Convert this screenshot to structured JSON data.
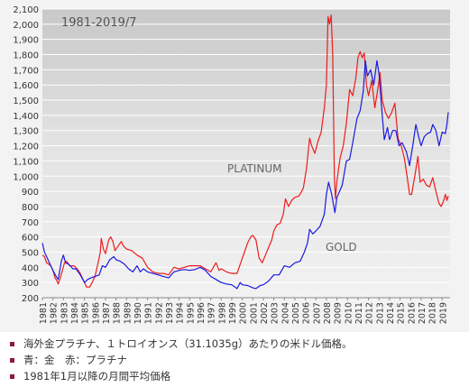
{
  "chart_data": {
    "type": "line",
    "period_label": "1981-2019/7",
    "ylim": [
      200,
      2100
    ],
    "y_ticks": [
      "200",
      "300",
      "400",
      "500",
      "600",
      "700",
      "800",
      "900",
      "1,000",
      "1,100",
      "1,200",
      "1,300",
      "1,400",
      "1,500",
      "1,600",
      "1,700",
      "1,800",
      "1,900",
      "2,000",
      "2,100"
    ],
    "x_ticks": [
      "1981",
      "1982",
      "1983",
      "1984",
      "1985",
      "1986",
      "1987",
      "1988",
      "1989",
      "1990",
      "1991",
      "1992",
      "1993",
      "1994",
      "1995",
      "1996",
      "1997",
      "1998",
      "1999",
      "2000",
      "2001",
      "2002",
      "2003",
      "2004",
      "2005",
      "2006",
      "2007",
      "2008",
      "2009",
      "2010",
      "2011",
      "2012",
      "2013",
      "2014",
      "2015",
      "2016",
      "2017",
      "2018",
      "2019"
    ],
    "series": [
      {
        "name": "PLATINUM",
        "color": "#ee1c1c",
        "points": [
          [
            1981.0,
            480
          ],
          [
            1981.2,
            470
          ],
          [
            1981.4,
            430
          ],
          [
            1981.6,
            420
          ],
          [
            1981.8,
            410
          ],
          [
            1982.0,
            380
          ],
          [
            1982.2,
            330
          ],
          [
            1982.4,
            310
          ],
          [
            1982.5,
            290
          ],
          [
            1982.7,
            330
          ],
          [
            1982.9,
            380
          ],
          [
            1983.1,
            430
          ],
          [
            1983.3,
            440
          ],
          [
            1983.6,
            410
          ],
          [
            1984.0,
            410
          ],
          [
            1984.3,
            390
          ],
          [
            1984.6,
            360
          ],
          [
            1985.0,
            300
          ],
          [
            1985.2,
            270
          ],
          [
            1985.5,
            270
          ],
          [
            1985.8,
            310
          ],
          [
            1986.0,
            340
          ],
          [
            1986.3,
            430
          ],
          [
            1986.5,
            500
          ],
          [
            1986.6,
            590
          ],
          [
            1986.8,
            520
          ],
          [
            1987.0,
            490
          ],
          [
            1987.3,
            580
          ],
          [
            1987.5,
            600
          ],
          [
            1987.7,
            570
          ],
          [
            1987.9,
            510
          ],
          [
            1988.2,
            540
          ],
          [
            1988.5,
            570
          ],
          [
            1988.7,
            540
          ],
          [
            1989.0,
            520
          ],
          [
            1989.5,
            510
          ],
          [
            1990.0,
            480
          ],
          [
            1990.5,
            460
          ],
          [
            1991.0,
            400
          ],
          [
            1991.5,
            370
          ],
          [
            1992.0,
            360
          ],
          [
            1992.5,
            360
          ],
          [
            1993.0,
            350
          ],
          [
            1993.5,
            400
          ],
          [
            1994.0,
            390
          ],
          [
            1994.5,
            400
          ],
          [
            1995.0,
            410
          ],
          [
            1995.5,
            410
          ],
          [
            1996.0,
            410
          ],
          [
            1996.5,
            390
          ],
          [
            1997.0,
            370
          ],
          [
            1997.5,
            430
          ],
          [
            1997.8,
            380
          ],
          [
            1998.0,
            390
          ],
          [
            1998.5,
            370
          ],
          [
            1999.0,
            360
          ],
          [
            1999.5,
            360
          ],
          [
            1999.9,
            440
          ],
          [
            2000.2,
            500
          ],
          [
            2000.5,
            560
          ],
          [
            2000.8,
            600
          ],
          [
            2001.0,
            610
          ],
          [
            2001.3,
            580
          ],
          [
            2001.6,
            460
          ],
          [
            2001.9,
            430
          ],
          [
            2002.2,
            480
          ],
          [
            2002.5,
            530
          ],
          [
            2002.8,
            580
          ],
          [
            2003.0,
            640
          ],
          [
            2003.3,
            680
          ],
          [
            2003.6,
            690
          ],
          [
            2003.9,
            750
          ],
          [
            2004.1,
            850
          ],
          [
            2004.4,
            800
          ],
          [
            2004.7,
            840
          ],
          [
            2005.0,
            860
          ],
          [
            2005.4,
            870
          ],
          [
            2005.8,
            920
          ],
          [
            2006.1,
            1050
          ],
          [
            2006.4,
            1250
          ],
          [
            2006.6,
            1200
          ],
          [
            2006.9,
            1150
          ],
          [
            2007.2,
            1230
          ],
          [
            2007.5,
            1290
          ],
          [
            2007.8,
            1450
          ],
          [
            2008.0,
            1600
          ],
          [
            2008.15,
            2050
          ],
          [
            2008.3,
            2000
          ],
          [
            2008.45,
            2060
          ],
          [
            2008.6,
            1800
          ],
          [
            2008.75,
            1000
          ],
          [
            2008.85,
            850
          ],
          [
            2009.0,
            970
          ],
          [
            2009.3,
            1120
          ],
          [
            2009.6,
            1200
          ],
          [
            2009.9,
            1350
          ],
          [
            2010.2,
            1570
          ],
          [
            2010.5,
            1530
          ],
          [
            2010.8,
            1650
          ],
          [
            2011.0,
            1780
          ],
          [
            2011.2,
            1820
          ],
          [
            2011.4,
            1780
          ],
          [
            2011.6,
            1810
          ],
          [
            2011.8,
            1600
          ],
          [
            2012.0,
            1530
          ],
          [
            2012.3,
            1630
          ],
          [
            2012.6,
            1450
          ],
          [
            2012.9,
            1580
          ],
          [
            2013.1,
            1680
          ],
          [
            2013.3,
            1500
          ],
          [
            2013.6,
            1420
          ],
          [
            2013.9,
            1380
          ],
          [
            2014.2,
            1420
          ],
          [
            2014.5,
            1480
          ],
          [
            2014.8,
            1250
          ],
          [
            2015.1,
            1200
          ],
          [
            2015.4,
            1120
          ],
          [
            2015.7,
            980
          ],
          [
            2015.9,
            880
          ],
          [
            2016.1,
            880
          ],
          [
            2016.4,
            1000
          ],
          [
            2016.7,
            1130
          ],
          [
            2016.9,
            960
          ],
          [
            2017.2,
            980
          ],
          [
            2017.5,
            940
          ],
          [
            2017.8,
            930
          ],
          [
            2018.1,
            990
          ],
          [
            2018.4,
            900
          ],
          [
            2018.7,
            820
          ],
          [
            2018.9,
            800
          ],
          [
            2019.1,
            830
          ],
          [
            2019.3,
            880
          ],
          [
            2019.45,
            840
          ],
          [
            2019.58,
            870
          ]
        ]
      },
      {
        "name": "GOLD",
        "color": "#1a1ae0",
        "points": [
          [
            1981.0,
            560
          ],
          [
            1981.2,
            500
          ],
          [
            1981.4,
            470
          ],
          [
            1981.6,
            440
          ],
          [
            1981.8,
            410
          ],
          [
            1982.0,
            380
          ],
          [
            1982.3,
            340
          ],
          [
            1982.5,
            320
          ],
          [
            1982.8,
            440
          ],
          [
            1983.0,
            480
          ],
          [
            1983.2,
            430
          ],
          [
            1983.5,
            420
          ],
          [
            1983.9,
            390
          ],
          [
            1984.2,
            390
          ],
          [
            1984.6,
            350
          ],
          [
            1985.0,
            300
          ],
          [
            1985.3,
            320
          ],
          [
            1985.6,
            330
          ],
          [
            1986.0,
            340
          ],
          [
            1986.4,
            350
          ],
          [
            1986.7,
            410
          ],
          [
            1987.0,
            400
          ],
          [
            1987.4,
            450
          ],
          [
            1987.8,
            470
          ],
          [
            1988.0,
            450
          ],
          [
            1988.4,
            440
          ],
          [
            1988.8,
            420
          ],
          [
            1989.2,
            390
          ],
          [
            1989.6,
            370
          ],
          [
            1990.0,
            410
          ],
          [
            1990.3,
            370
          ],
          [
            1990.6,
            390
          ],
          [
            1991.0,
            370
          ],
          [
            1991.5,
            360
          ],
          [
            1992.0,
            350
          ],
          [
            1992.5,
            340
          ],
          [
            1993.0,
            330
          ],
          [
            1993.5,
            370
          ],
          [
            1994.0,
            380
          ],
          [
            1994.5,
            385
          ],
          [
            1995.0,
            380
          ],
          [
            1995.5,
            385
          ],
          [
            1996.0,
            400
          ],
          [
            1996.5,
            380
          ],
          [
            1997.0,
            340
          ],
          [
            1997.5,
            320
          ],
          [
            1998.0,
            300
          ],
          [
            1998.5,
            290
          ],
          [
            1999.0,
            285
          ],
          [
            1999.5,
            260
          ],
          [
            1999.8,
            300
          ],
          [
            2000.0,
            285
          ],
          [
            2000.5,
            280
          ],
          [
            2001.0,
            265
          ],
          [
            2001.3,
            260
          ],
          [
            2001.7,
            280
          ],
          [
            2002.0,
            285
          ],
          [
            2002.5,
            310
          ],
          [
            2003.0,
            350
          ],
          [
            2003.5,
            350
          ],
          [
            2004.0,
            410
          ],
          [
            2004.5,
            400
          ],
          [
            2005.0,
            430
          ],
          [
            2005.5,
            440
          ],
          [
            2005.9,
            500
          ],
          [
            2006.2,
            560
          ],
          [
            2006.4,
            650
          ],
          [
            2006.7,
            620
          ],
          [
            2007.0,
            640
          ],
          [
            2007.4,
            670
          ],
          [
            2007.8,
            750
          ],
          [
            2008.0,
            880
          ],
          [
            2008.2,
            960
          ],
          [
            2008.5,
            880
          ],
          [
            2008.8,
            760
          ],
          [
            2009.0,
            860
          ],
          [
            2009.5,
            940
          ],
          [
            2009.9,
            1100
          ],
          [
            2010.2,
            1110
          ],
          [
            2010.5,
            1220
          ],
          [
            2010.9,
            1380
          ],
          [
            2011.2,
            1430
          ],
          [
            2011.5,
            1560
          ],
          [
            2011.7,
            1760
          ],
          [
            2011.9,
            1660
          ],
          [
            2012.2,
            1700
          ],
          [
            2012.5,
            1600
          ],
          [
            2012.8,
            1760
          ],
          [
            2013.0,
            1670
          ],
          [
            2013.3,
            1400
          ],
          [
            2013.5,
            1240
          ],
          [
            2013.8,
            1320
          ],
          [
            2014.0,
            1240
          ],
          [
            2014.3,
            1300
          ],
          [
            2014.6,
            1300
          ],
          [
            2014.9,
            1200
          ],
          [
            2015.2,
            1220
          ],
          [
            2015.6,
            1160
          ],
          [
            2015.9,
            1070
          ],
          [
            2016.2,
            1200
          ],
          [
            2016.5,
            1340
          ],
          [
            2016.8,
            1250
          ],
          [
            2017.0,
            1200
          ],
          [
            2017.3,
            1260
          ],
          [
            2017.6,
            1280
          ],
          [
            2017.9,
            1290
          ],
          [
            2018.1,
            1340
          ],
          [
            2018.4,
            1300
          ],
          [
            2018.7,
            1200
          ],
          [
            2019.0,
            1290
          ],
          [
            2019.3,
            1280
          ],
          [
            2019.45,
            1340
          ],
          [
            2019.58,
            1420
          ]
        ]
      }
    ]
  },
  "notes": [
    "海外金プラチナ、１トロイオンス（31.1035g）あたりの米ドル価格。",
    "青：金　赤：プラチナ",
    "1981年1月以降の月間平均価格"
  ]
}
